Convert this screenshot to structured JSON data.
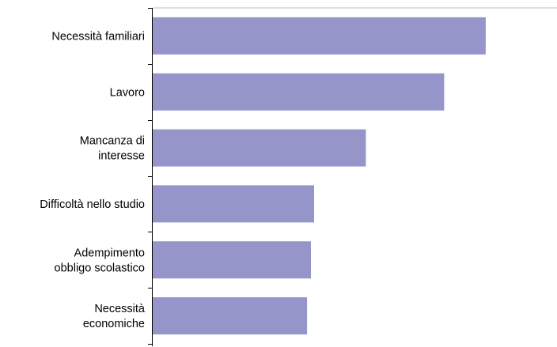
{
  "chart_data": {
    "type": "bar",
    "orientation": "horizontal",
    "title": "",
    "xlabel": "",
    "ylabel": "",
    "categories": [
      [
        "Necessità  familiari"
      ],
      [
        "Lavoro"
      ],
      [
        "Mancanza di",
        "interesse"
      ],
      [
        "Difficoltà  nello studio"
      ],
      [
        "Adempimento",
        "obbligo scolastico"
      ],
      [
        "Necessità",
        "economiche"
      ]
    ],
    "values": [
      42.5,
      37.2,
      27.2,
      20.6,
      20.2,
      19.7
    ],
    "xlim": [
      0,
      51.6
    ],
    "bar_color": "#9595c9",
    "axis_color": "#000000",
    "top_border_color": "#bfbfbf",
    "grid": false,
    "legend": "none"
  }
}
